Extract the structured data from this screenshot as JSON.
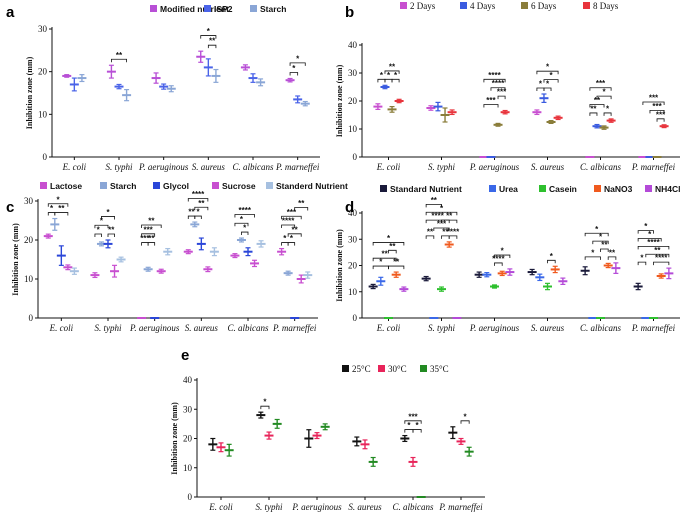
{
  "colors": {
    "modified_nutrient": "#b84fd6",
    "isp2": "#4a63e8",
    "starch": "#8aa6d6",
    "day2": "#c84fd0",
    "day4": "#3a5be0",
    "day6": "#8a7d3a",
    "day8": "#e8343c",
    "lactose": "#c84fd0",
    "glycol": "#2a46d8",
    "sucrose": "#c84fd0",
    "standerd": "#a6c0e0",
    "standard_nutrient": "#1a1a3a",
    "urea": "#3a68e8",
    "casein": "#2ec02e",
    "nano3": "#f05a1e",
    "nh4cl": "#b44ad8",
    "t25": "#111111",
    "t30": "#e8245a",
    "t35": "#228a22",
    "significance": "#111111"
  },
  "chart_data": [
    {
      "panel": "a",
      "type": "scatter",
      "ylabel": "Inhibition zone (mm)",
      "ylim": [
        0,
        30
      ],
      "yticks": [
        0,
        10,
        20,
        30
      ],
      "categories": [
        "E. coli",
        "S. typhi",
        "P. aeruginous",
        "S. aureus",
        "C. albicans",
        "P. marneffei"
      ],
      "series": [
        {
          "name": "Modified nutrient",
          "color_key": "modified_nutrient",
          "values": [
            19,
            20,
            18.5,
            23.5,
            21,
            18
          ],
          "err": [
            0.3,
            1.5,
            1.2,
            1.3,
            0.6,
            0.4
          ]
        },
        {
          "name": "ISP2",
          "color_key": "isp2",
          "values": [
            17,
            16.5,
            16.5,
            21,
            18.5,
            13.5
          ],
          "err": [
            1.5,
            0.5,
            0.6,
            2,
            1,
            0.8
          ]
        },
        {
          "name": "Starch",
          "color_key": "starch",
          "values": [
            18.5,
            14.5,
            16,
            19,
            17.5,
            12.5
          ],
          "err": [
            0.8,
            1.3,
            0.7,
            1.5,
            0.8,
            0.5
          ]
        }
      ],
      "significance": [
        {
          "cat": 1,
          "from": 0,
          "to": 2,
          "label": "**",
          "level": 1
        },
        {
          "cat": 3,
          "from": 0,
          "to": 2,
          "label": "*",
          "level": 2
        },
        {
          "cat": 3,
          "from": 1,
          "to": 2,
          "label": "**",
          "level": 1
        },
        {
          "cat": 5,
          "from": 0,
          "to": 2,
          "label": "*",
          "level": 2
        },
        {
          "cat": 5,
          "from": 0,
          "to": 1,
          "label": "*",
          "level": 1
        }
      ]
    },
    {
      "panel": "b",
      "type": "scatter",
      "ylabel": "Inhibition zone (mm)",
      "ylim": [
        0,
        40
      ],
      "yticks": [
        0,
        10,
        20,
        30,
        40
      ],
      "categories": [
        "E. coli",
        "S. typhi",
        "P. aeruginous",
        "S. aureus",
        "C. albicans",
        "P. marneffei"
      ],
      "series": [
        {
          "name": "2 Days",
          "color_key": "day2",
          "values": [
            18,
            17.5,
            0,
            16,
            0,
            0
          ],
          "err": [
            1,
            0.8,
            0,
            0.8,
            0,
            0
          ]
        },
        {
          "name": "4 Days",
          "color_key": "day4",
          "values": [
            25,
            18,
            0,
            21,
            11,
            0
          ],
          "err": [
            0.6,
            1.5,
            0,
            1.5,
            0.6,
            0
          ]
        },
        {
          "name": "6 Days",
          "color_key": "day6",
          "values": [
            17,
            15,
            11.5,
            12.5,
            10.5,
            0
          ],
          "err": [
            1,
            2.5,
            0.5,
            0.5,
            0.6,
            0
          ]
        },
        {
          "name": "8 Days",
          "color_key": "day8",
          "values": [
            20,
            16,
            16,
            14,
            13,
            11
          ],
          "err": [
            0.6,
            0.8,
            0.6,
            0.6,
            0.6,
            0.5
          ]
        }
      ],
      "significance": [
        {
          "cat": 0,
          "from": 0,
          "to": 1,
          "label": "*",
          "level": 1
        },
        {
          "cat": 0,
          "from": 1,
          "to": 2,
          "label": "*",
          "level": 1
        },
        {
          "cat": 0,
          "from": 2,
          "to": 3,
          "label": "*",
          "level": 1
        },
        {
          "cat": 0,
          "from": 1,
          "to": 3,
          "label": "**",
          "level": 2
        },
        {
          "cat": 2,
          "from": 0,
          "to": 3,
          "label": "****",
          "level": 4
        },
        {
          "cat": 2,
          "from": 1,
          "to": 3,
          "label": "****",
          "level": 3
        },
        {
          "cat": 2,
          "from": 2,
          "to": 3,
          "label": "***",
          "level": 2
        },
        {
          "cat": 2,
          "from": 0,
          "to": 2,
          "label": "***",
          "level": 1
        },
        {
          "cat": 3,
          "from": 0,
          "to": 3,
          "label": "*",
          "level": 3
        },
        {
          "cat": 3,
          "from": 1,
          "to": 3,
          "label": "*",
          "level": 2
        },
        {
          "cat": 3,
          "from": 0,
          "to": 1,
          "label": "*",
          "level": 1
        },
        {
          "cat": 3,
          "from": 1,
          "to": 2,
          "label": "*",
          "level": 1
        },
        {
          "cat": 4,
          "from": 0,
          "to": 3,
          "label": "***",
          "level": 4
        },
        {
          "cat": 4,
          "from": 1,
          "to": 3,
          "label": "*",
          "level": 3
        },
        {
          "cat": 4,
          "from": 0,
          "to": 2,
          "label": "**",
          "level": 2
        },
        {
          "cat": 4,
          "from": 0,
          "to": 1,
          "label": "**",
          "level": 1
        },
        {
          "cat": 4,
          "from": 2,
          "to": 3,
          "label": "*",
          "level": 1
        },
        {
          "cat": 5,
          "from": 0,
          "to": 3,
          "label": "***",
          "level": 3
        },
        {
          "cat": 5,
          "from": 1,
          "to": 3,
          "label": "***",
          "level": 2
        },
        {
          "cat": 5,
          "from": 2,
          "to": 3,
          "label": "***",
          "level": 1
        }
      ]
    },
    {
      "panel": "c",
      "type": "scatter",
      "ylabel": "Inhibition zone (mm)",
      "ylim": [
        0,
        30
      ],
      "yticks": [
        0,
        10,
        20,
        30
      ],
      "categories": [
        "E. coli",
        "S. typhi",
        "P. aeruginous",
        "S. aureus",
        "C. albicans",
        "P. marneffei"
      ],
      "series": [
        {
          "name": "Lactose",
          "color_key": "lactose",
          "values": [
            21,
            11,
            0,
            17,
            16,
            17
          ],
          "err": [
            0.5,
            0.6,
            0,
            0.5,
            0.5,
            0.8
          ]
        },
        {
          "name": "Starch",
          "color_key": "starch",
          "values": [
            24,
            19,
            12.5,
            24,
            20,
            11.5
          ],
          "err": [
            1.5,
            0.5,
            0.5,
            0.6,
            0.5,
            0.5
          ]
        },
        {
          "name": "Glycol",
          "color_key": "glycol",
          "values": [
            16,
            19,
            0,
            19,
            17,
            0
          ],
          "err": [
            2.5,
            1,
            0,
            1.5,
            1,
            0
          ]
        },
        {
          "name": "Sucrose",
          "color_key": "sucrose",
          "values": [
            13,
            12,
            12,
            12.5,
            14,
            10
          ],
          "err": [
            0.6,
            1.5,
            0.5,
            0.6,
            0.8,
            1
          ]
        },
        {
          "name": "Standerd Nutrient",
          "color_key": "standerd",
          "values": [
            12,
            15,
            17,
            17,
            19,
            11
          ],
          "err": [
            0.8,
            0.6,
            0.8,
            1,
            0.8,
            0.8
          ]
        }
      ],
      "significance": [
        {
          "cat": 0,
          "from": 0,
          "to": 1,
          "label": "*",
          "level": 1
        },
        {
          "cat": 0,
          "from": 1,
          "to": 3,
          "label": "**",
          "level": 1
        },
        {
          "cat": 0,
          "from": 0,
          "to": 3,
          "label": "*",
          "level": 2
        },
        {
          "cat": 1,
          "from": 0,
          "to": 1,
          "label": "*",
          "level": 1
        },
        {
          "cat": 1,
          "from": 2,
          "to": 3,
          "label": "**",
          "level": 1
        },
        {
          "cat": 1,
          "from": 0,
          "to": 2,
          "label": "*",
          "level": 2
        },
        {
          "cat": 1,
          "from": 1,
          "to": 3,
          "label": "*",
          "level": 3
        },
        {
          "cat": 2,
          "from": 0,
          "to": 1,
          "label": "***",
          "level": 1
        },
        {
          "cat": 2,
          "from": 1,
          "to": 2,
          "label": "**",
          "level": 1
        },
        {
          "cat": 2,
          "from": 0,
          "to": 2,
          "label": "***",
          "level": 2
        },
        {
          "cat": 2,
          "from": 0,
          "to": 3,
          "label": "**",
          "level": 3
        },
        {
          "cat": 3,
          "from": 0,
          "to": 1,
          "label": "**",
          "level": 1
        },
        {
          "cat": 3,
          "from": 1,
          "to": 2,
          "label": "*",
          "level": 1
        },
        {
          "cat": 3,
          "from": 1,
          "to": 3,
          "label": "**",
          "level": 2
        },
        {
          "cat": 3,
          "from": 0,
          "to": 3,
          "label": "****",
          "level": 3
        },
        {
          "cat": 4,
          "from": 1,
          "to": 2,
          "label": "*",
          "level": 1
        },
        {
          "cat": 4,
          "from": 0,
          "to": 2,
          "label": "*",
          "level": 2
        },
        {
          "cat": 4,
          "from": 0,
          "to": 3,
          "label": "****",
          "level": 3
        },
        {
          "cat": 5,
          "from": 0,
          "to": 1,
          "label": "*",
          "level": 1
        },
        {
          "cat": 5,
          "from": 1,
          "to": 2,
          "label": "*",
          "level": 1
        },
        {
          "cat": 5,
          "from": 1,
          "to": 3,
          "label": "**",
          "level": 2
        },
        {
          "cat": 5,
          "from": 0,
          "to": 2,
          "label": "****",
          "level": 3
        },
        {
          "cat": 5,
          "from": 0,
          "to": 3,
          "label": "***",
          "level": 4
        },
        {
          "cat": 5,
          "from": 2,
          "to": 4,
          "label": "**",
          "level": 5
        }
      ]
    },
    {
      "panel": "d",
      "type": "scatter",
      "ylabel": "Inhibition zone (mm)",
      "ylim": [
        0,
        40
      ],
      "yticks": [
        0,
        10,
        20,
        30,
        40
      ],
      "categories": [
        "E. coli",
        "S. typhi",
        "P. aeruginous",
        "S. aureus",
        "C. albicans",
        "P. marneffei"
      ],
      "series": [
        {
          "name": "Standard Nutrient",
          "color_key": "standard_nutrient",
          "values": [
            12,
            15,
            16.5,
            17.5,
            18,
            12
          ],
          "err": [
            0.8,
            0.8,
            1,
            1,
            1.5,
            1.2
          ]
        },
        {
          "name": "Urea",
          "color_key": "urea",
          "values": [
            14,
            0,
            16.5,
            15.5,
            0,
            0
          ],
          "err": [
            1.5,
            0,
            0.8,
            1.2,
            0,
            0
          ]
        },
        {
          "name": "Casein",
          "color_key": "casein",
          "values": [
            0,
            11,
            12,
            12,
            0,
            0
          ],
          "err": [
            0,
            0.8,
            0.6,
            1.2,
            0,
            0
          ]
        },
        {
          "name": "NaNO3",
          "color_key": "nano3",
          "values": [
            16.5,
            28,
            17,
            18.5,
            20,
            16
          ],
          "err": [
            1,
            1,
            0.8,
            1.2,
            0.8,
            0.8
          ]
        },
        {
          "name": "NH4Cl",
          "color_key": "nh4cl",
          "values": [
            11,
            0,
            17.5,
            14,
            19,
            17
          ],
          "err": [
            0.8,
            0,
            1.2,
            1.2,
            2,
            2
          ]
        }
      ],
      "significance": [
        {
          "cat": 0,
          "from": 0,
          "to": 2,
          "label": "*",
          "level": 1
        },
        {
          "cat": 0,
          "from": 2,
          "to": 4,
          "label": "**",
          "level": 1
        },
        {
          "cat": 0,
          "from": 0,
          "to": 3,
          "label": "**",
          "level": 2
        },
        {
          "cat": 0,
          "from": 2,
          "to": 3,
          "label": "**",
          "level": 3
        },
        {
          "cat": 0,
          "from": 0,
          "to": 4,
          "label": "*",
          "level": 4
        },
        {
          "cat": 1,
          "from": 0,
          "to": 1,
          "label": "**",
          "level": 1
        },
        {
          "cat": 1,
          "from": 2,
          "to": 3,
          "label": "**",
          "level": 1
        },
        {
          "cat": 1,
          "from": 3,
          "to": 4,
          "label": "****",
          "level": 1
        },
        {
          "cat": 1,
          "from": 1,
          "to": 3,
          "label": "***",
          "level": 2
        },
        {
          "cat": 1,
          "from": 0,
          "to": 3,
          "label": "****",
          "level": 3
        },
        {
          "cat": 1,
          "from": 2,
          "to": 4,
          "label": "**",
          "level": 3
        },
        {
          "cat": 1,
          "from": 0,
          "to": 4,
          "label": "*",
          "level": 4
        },
        {
          "cat": 1,
          "from": 0,
          "to": 2,
          "label": "**",
          "level": 5
        },
        {
          "cat": 2,
          "from": 2,
          "to": 3,
          "label": "****",
          "level": 1
        },
        {
          "cat": 2,
          "from": 2,
          "to": 4,
          "label": "*",
          "level": 2
        },
        {
          "cat": 3,
          "from": 2,
          "to": 3,
          "label": "*",
          "level": 1
        },
        {
          "cat": 4,
          "from": 0,
          "to": 2,
          "label": "*",
          "level": 1
        },
        {
          "cat": 4,
          "from": 3,
          "to": 4,
          "label": "**",
          "level": 1
        },
        {
          "cat": 4,
          "from": 2,
          "to": 3,
          "label": "**",
          "level": 2
        },
        {
          "cat": 4,
          "from": 1,
          "to": 3,
          "label": "*",
          "level": 3
        },
        {
          "cat": 4,
          "from": 0,
          "to": 3,
          "label": "*",
          "level": 4
        },
        {
          "cat": 5,
          "from": 0,
          "to": 1,
          "label": "*",
          "level": 1
        },
        {
          "cat": 5,
          "from": 2,
          "to": 4,
          "label": "****",
          "level": 1
        },
        {
          "cat": 5,
          "from": 1,
          "to": 4,
          "label": "**",
          "level": 2
        },
        {
          "cat": 5,
          "from": 0,
          "to": 4,
          "label": "****",
          "level": 3
        },
        {
          "cat": 5,
          "from": 0,
          "to": 3,
          "label": "*",
          "level": 4
        },
        {
          "cat": 5,
          "from": 0,
          "to": 2,
          "label": "*",
          "level": 5
        }
      ]
    },
    {
      "panel": "e",
      "type": "scatter",
      "ylabel": "Inhibition zone (mm)",
      "ylim": [
        0,
        40
      ],
      "yticks": [
        0,
        10,
        20,
        30,
        40
      ],
      "categories": [
        "E. coli",
        "S. typhi",
        "P. aeruginous",
        "S. aureus",
        "C. albicans",
        "P. marneffei"
      ],
      "series": [
        {
          "name": "25°C",
          "color_key": "t25",
          "values": [
            18,
            28,
            20,
            19,
            20,
            22
          ],
          "err": [
            2,
            1,
            3,
            1.5,
            1,
            2
          ]
        },
        {
          "name": "30°C",
          "color_key": "t30",
          "values": [
            17,
            21,
            21,
            18,
            12,
            19
          ],
          "err": [
            1.5,
            1.2,
            1,
            1.5,
            1.5,
            1
          ]
        },
        {
          "name": "35°C",
          "color_key": "t35",
          "values": [
            16,
            25,
            24,
            12,
            0,
            15.5
          ],
          "err": [
            2,
            1.5,
            1,
            1.5,
            0,
            1.5
          ]
        }
      ],
      "significance": [
        {
          "cat": 1,
          "from": 0,
          "to": 1,
          "label": "*",
          "level": 1
        },
        {
          "cat": 4,
          "from": 0,
          "to": 1,
          "label": "*",
          "level": 1
        },
        {
          "cat": 4,
          "from": 1,
          "to": 2,
          "label": "*",
          "level": 1
        },
        {
          "cat": 4,
          "from": 0,
          "to": 2,
          "label": "***",
          "level": 2
        },
        {
          "cat": 5,
          "from": 1,
          "to": 2,
          "label": "*",
          "level": 1
        }
      ]
    }
  ]
}
